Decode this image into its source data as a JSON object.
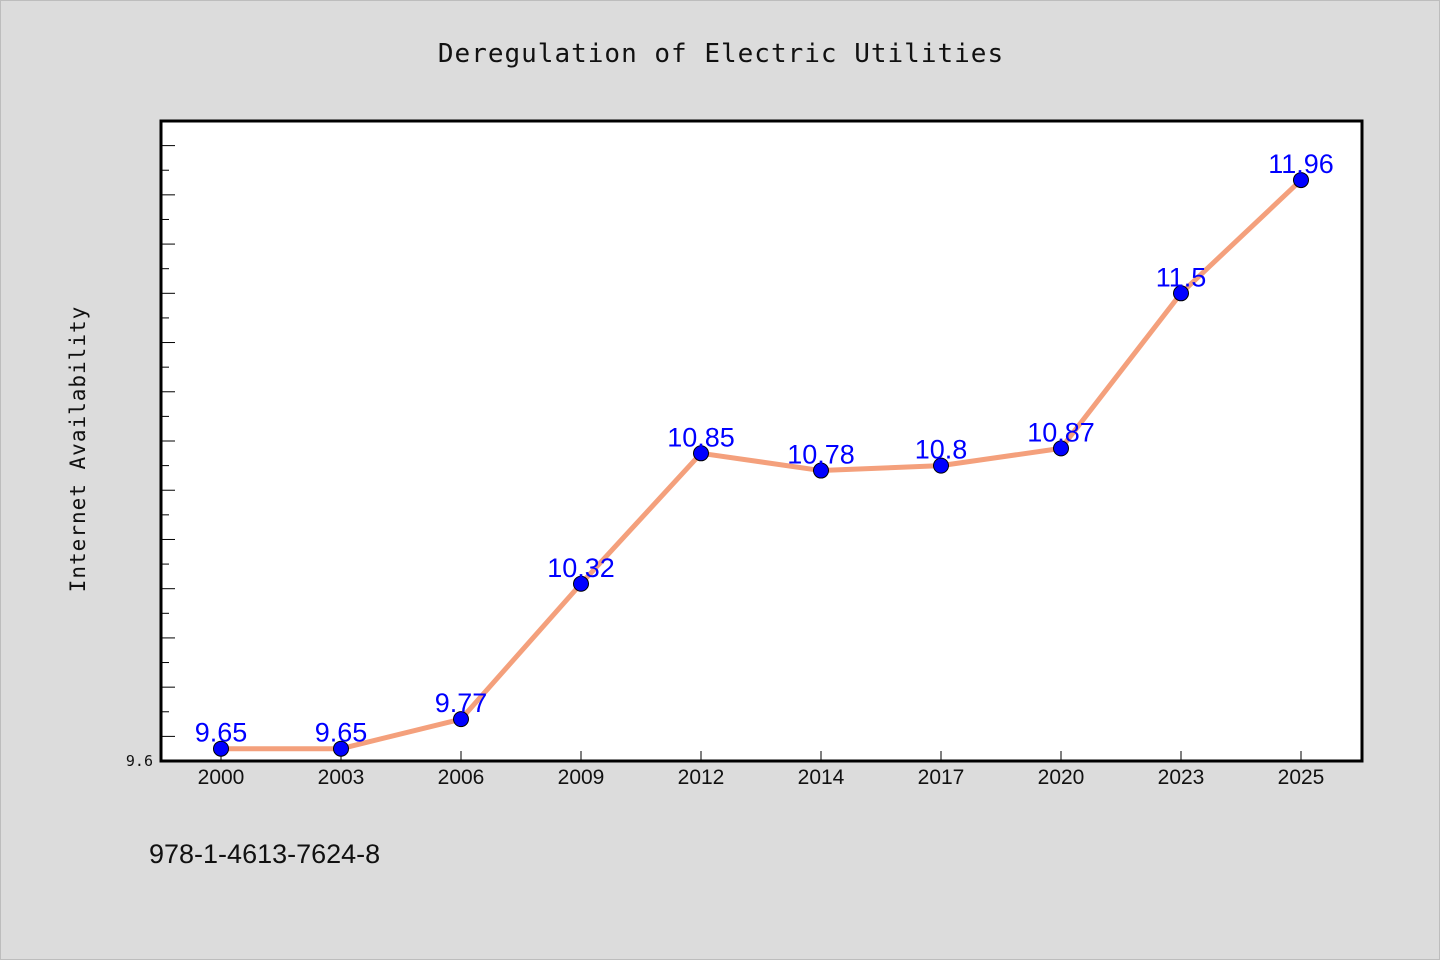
{
  "footer": {
    "isbn": "978-1-4613-7624-8"
  },
  "chart_data": {
    "type": "line",
    "title": "Deregulation of Electric Utilities",
    "xlabel": "",
    "ylabel": "Internet Availability",
    "categories": [
      "2000",
      "2003",
      "2006",
      "2009",
      "2012",
      "2014",
      "2017",
      "2020",
      "2023",
      "2025"
    ],
    "series": [
      {
        "values": [
          9.65,
          9.65,
          9.77,
          10.32,
          10.85,
          10.78,
          10.8,
          10.87,
          11.5,
          11.96
        ]
      }
    ],
    "data_labels": [
      "9.65",
      "9.65",
      "9.77",
      "10.32",
      "10.85",
      "10.78",
      "10.8",
      "10.87",
      "11.5",
      "11.96"
    ],
    "ylim": [
      9.6,
      12.2
    ],
    "y_tick_labels": [
      "9.6"
    ],
    "grid": false,
    "legend": "none",
    "colors": {
      "line": "#f4a07c",
      "marker": "#0000ff",
      "data_label": "#0000ff",
      "plot_background": "#ffffff",
      "page_background": "#dcdcdc"
    }
  }
}
